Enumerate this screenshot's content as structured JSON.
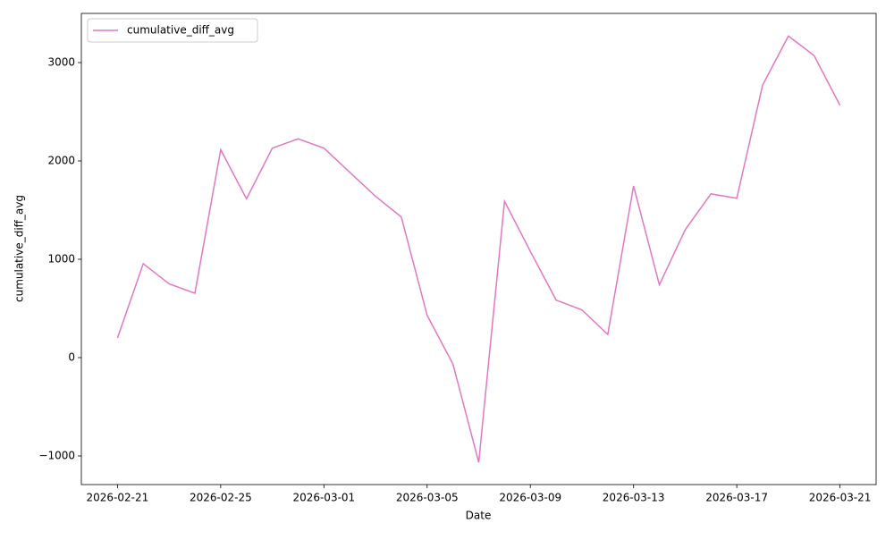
{
  "chart_data": {
    "type": "line",
    "x_label": "Date",
    "y_label": "cumulative_diff_avg",
    "x": [
      "2026-02-21",
      "2026-02-22",
      "2026-02-23",
      "2026-02-24",
      "2026-02-25",
      "2026-02-26",
      "2026-02-27",
      "2026-02-28",
      "2026-03-01",
      "2026-03-02",
      "2026-03-03",
      "2026-03-04",
      "2026-03-05",
      "2026-03-06",
      "2026-03-07",
      "2026-03-08",
      "2026-03-09",
      "2026-03-10",
      "2026-03-11",
      "2026-03-12",
      "2026-03-13",
      "2026-03-14",
      "2026-03-15",
      "2026-03-16",
      "2026-03-17",
      "2026-03-18",
      "2026-03-19",
      "2026-03-20",
      "2026-03-21"
    ],
    "series": [
      {
        "name": "cumulative_diff_avg",
        "color": "#e377c2",
        "values": [
          200,
          955,
          750,
          655,
          2115,
          1615,
          2130,
          2225,
          2130,
          1885,
          1640,
          1430,
          430,
          -65,
          -1065,
          1590,
          1080,
          585,
          485,
          235,
          1745,
          740,
          1300,
          1665,
          1620,
          2770,
          3270,
          3070,
          2565
        ]
      }
    ],
    "ylim": [
      -1291,
      3500
    ],
    "yticks": [
      {
        "value": -1000,
        "label": "−1000"
      },
      0,
      1000,
      2000,
      3000
    ],
    "xticks": [
      "2026-02-21",
      "2026-02-25",
      "2026-03-01",
      "2026-03-05",
      "2026-03-09",
      "2026-03-13",
      "2026-03-17",
      "2026-03-21"
    ],
    "legend": "upper left",
    "grid": false
  }
}
